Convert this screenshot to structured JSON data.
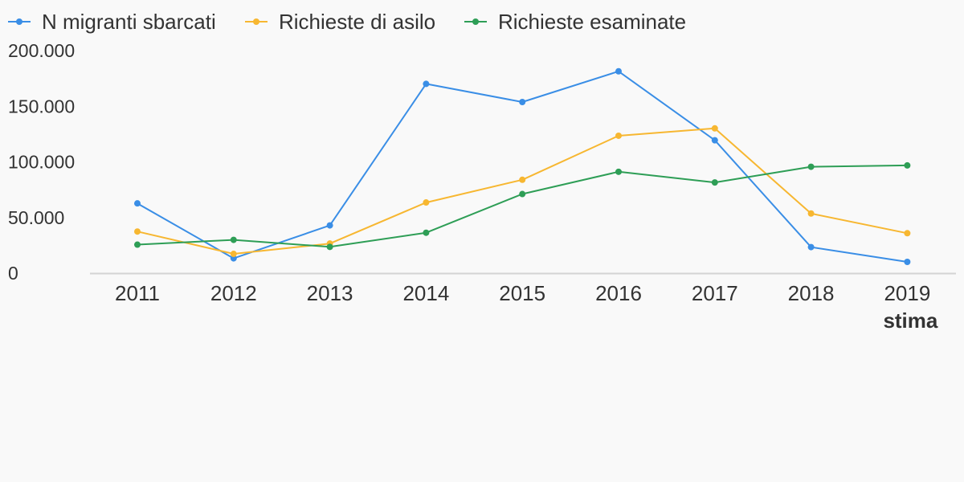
{
  "chart_data": {
    "type": "line",
    "categories": [
      "2011",
      "2012",
      "2013",
      "2014",
      "2015",
      "2016",
      "2017",
      "2018",
      "2019"
    ],
    "category_notes": [
      "",
      "",
      "",
      "",
      "",
      "",
      "",
      "",
      "stima"
    ],
    "series": [
      {
        "name": "N migranti sbarcati",
        "color": "#3a8ee6",
        "values": [
          62700,
          13300,
          42900,
          170100,
          153800,
          181400,
          119400,
          23400,
          10100
        ]
      },
      {
        "name": "Richieste di asilo",
        "color": "#f7b731",
        "values": [
          37400,
          17300,
          26600,
          63500,
          83900,
          123500,
          130100,
          53600,
          35900
        ]
      },
      {
        "name": "Richieste esaminate",
        "color": "#2e9e56",
        "values": [
          25600,
          29900,
          23600,
          36300,
          71100,
          91100,
          81500,
          95600,
          96800
        ]
      }
    ],
    "yticks": [
      0,
      50000,
      100000,
      150000,
      200000
    ],
    "ytick_labels": [
      "0",
      "50.000",
      "100.000",
      "150.000",
      "200.000"
    ],
    "ylim": [
      0,
      200000
    ],
    "legend_position": "top-left",
    "grid": false,
    "axis_color": "#d4d4d4"
  }
}
